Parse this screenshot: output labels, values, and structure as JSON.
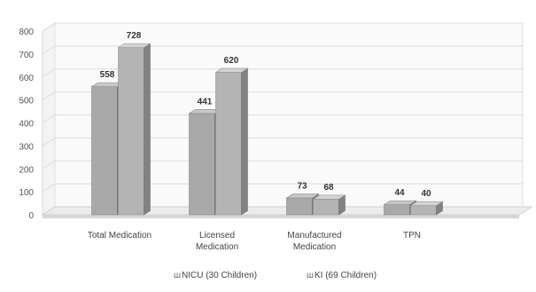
{
  "chart_data": {
    "type": "bar",
    "categories": [
      "Total Medication",
      "Licensed Medication",
      "Manufactured Medication",
      "TPN"
    ],
    "category_lines": [
      [
        "Total Medication"
      ],
      [
        "Licensed",
        "Medication"
      ],
      [
        "Manufactured",
        "Medication"
      ],
      [
        "TPN"
      ]
    ],
    "series": [
      {
        "name": "NICU (30 Children)",
        "values": [
          558,
          441,
          73,
          44
        ],
        "color": "#a9a9a9"
      },
      {
        "name": "KI (69 Children)",
        "values": [
          728,
          620,
          68,
          40
        ],
        "color": "#b4b4b4"
      }
    ],
    "ylim": [
      0,
      800
    ],
    "yticks": [
      0,
      100,
      200,
      300,
      400,
      500,
      600,
      700,
      800
    ],
    "grid": true,
    "legend_position": "bottom",
    "legend_marker": "ш",
    "style": "3d-clustered-bar"
  }
}
